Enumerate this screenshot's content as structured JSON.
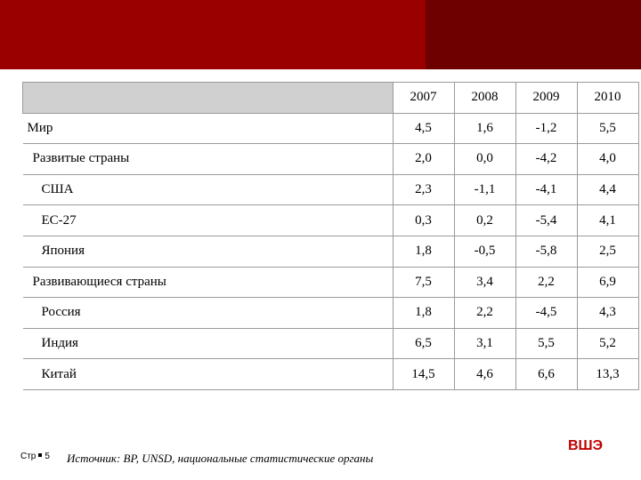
{
  "table": {
    "columns": [
      "2007",
      "2008",
      "2009",
      "2010"
    ],
    "rows": [
      [
        "Мир",
        "4,5",
        "1,6",
        "-1,2",
        "5,5"
      ],
      [
        "Развитые страны",
        "2,0",
        "0,0",
        "-4,2",
        "4,0"
      ],
      [
        "США",
        "2,3",
        "-1,1",
        "-4,1",
        "4,4"
      ],
      [
        "ЕС-27",
        "0,3",
        "0,2",
        "-5,4",
        "4,1"
      ],
      [
        "Япония",
        "1,8",
        "-0,5",
        "-5,8",
        "2,5"
      ],
      [
        "Развивающиеся страны",
        "7,5",
        "3,4",
        "2,2",
        "6,9"
      ],
      [
        "Россия",
        "1,8",
        "2,2",
        "-4,5",
        "4,3"
      ],
      [
        "Индия",
        "6,5",
        "3,1",
        "5,5",
        "5,2"
      ],
      [
        "Китай",
        "14,5",
        "4,6",
        "6,6",
        "13,3"
      ]
    ]
  },
  "footer": {
    "page_label": "Стр",
    "page_number": "5",
    "source": "Источник: BP, UNSD, национальные статистические органы",
    "logo": "ВШЭ"
  }
}
